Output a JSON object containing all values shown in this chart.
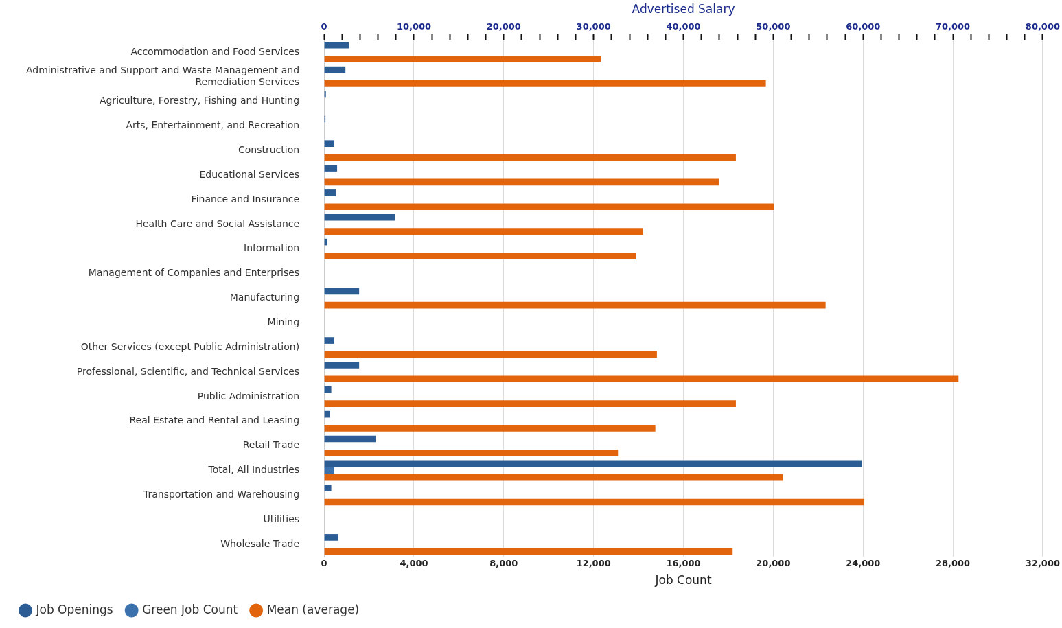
{
  "chart_data": {
    "type": "bar",
    "orientation": "horizontal",
    "xlabel": "Job Count",
    "x2label": "Advertised Salary",
    "categories": [
      "Accommodation and Food Services",
      "Administrative and Support and Waste Management and Remediation Services",
      "Agriculture, Forestry, Fishing and Hunting",
      "Arts, Entertainment, and Recreation",
      "Construction",
      "Educational Services",
      "Finance and Insurance",
      "Health Care and Social Assistance",
      "Information",
      "Management of Companies and Enterprises",
      "Manufacturing",
      "Mining",
      "Other Services (except Public Administration)",
      "Professional, Scientific, and Technical Services",
      "Public Administration",
      "Real Estate and Rental and Leasing",
      "Retail Trade",
      "Total, All Industries",
      "Transportation and Warehousing",
      "Utilities",
      "Wholesale Trade"
    ],
    "series": [
      {
        "name": "Job Openings",
        "color": "#2b5c94",
        "values": [
          1100,
          950,
          80,
          60,
          450,
          580,
          520,
          3170,
          140,
          null,
          1560,
          null,
          450,
          1560,
          320,
          270,
          2290,
          23940,
          320,
          null,
          630
        ]
      },
      {
        "name": "Green Job Count",
        "color": "#3b72ae",
        "values": [
          null,
          null,
          null,
          null,
          null,
          null,
          null,
          null,
          null,
          null,
          null,
          null,
          null,
          null,
          null,
          null,
          null,
          450,
          null,
          null,
          null
        ]
      },
      {
        "name": "Mean (average)",
        "color": "#e2650e",
        "axis": "x2",
        "values": [
          30860,
          49180,
          null,
          null,
          45840,
          43990,
          50120,
          35510,
          34710,
          null,
          55830,
          null,
          37050,
          70630,
          45840,
          36880,
          32720,
          51060,
          60140,
          null,
          45480
        ]
      }
    ],
    "xlim": [
      0,
      32000
    ],
    "xticks": [
      0,
      {
        "value": 4000,
        "label": "4,000"
      },
      {
        "value": 8000,
        "label": "8,000"
      },
      {
        "value": 12000,
        "label": "12,000"
      },
      {
        "value": 16000,
        "label": "16,000"
      },
      {
        "value": 20000,
        "label": "20,000"
      },
      {
        "value": 24000,
        "label": "24,000"
      },
      {
        "value": 28000,
        "label": "28,000"
      },
      {
        "value": 32000,
        "label": "32,000"
      }
    ],
    "x2lim": [
      0,
      80000
    ],
    "x2ticks": [
      0,
      {
        "value": 2000,
        "label": null
      },
      {
        "value": 4000,
        "label": null
      },
      {
        "value": 6000,
        "label": null
      },
      {
        "value": 8000,
        "label": null
      },
      {
        "value": 10000,
        "label": "10,000"
      },
      {
        "value": 12000,
        "label": null
      },
      {
        "value": 14000,
        "label": null
      },
      {
        "value": 16000,
        "label": null
      },
      {
        "value": 18000,
        "label": null
      },
      {
        "value": 20000,
        "label": "20,000"
      },
      {
        "value": 22000,
        "label": null
      },
      {
        "value": 24000,
        "label": null
      },
      {
        "value": 26000,
        "label": null
      },
      {
        "value": 28000,
        "label": null
      },
      {
        "value": 30000,
        "label": "30,000"
      },
      {
        "value": 32000,
        "label": null
      },
      {
        "value": 34000,
        "label": null
      },
      {
        "value": 36000,
        "label": null
      },
      {
        "value": 38000,
        "label": null
      },
      {
        "value": 40000,
        "label": "40,000"
      },
      {
        "value": 42000,
        "label": null
      },
      {
        "value": 44000,
        "label": null
      },
      {
        "value": 46000,
        "label": null
      },
      {
        "value": 48000,
        "label": null
      },
      {
        "value": 50000,
        "label": "50,000"
      },
      {
        "value": 52000,
        "label": null
      },
      {
        "value": 54000,
        "label": null
      },
      {
        "value": 56000,
        "label": null
      },
      {
        "value": 58000,
        "label": null
      },
      {
        "value": 60000,
        "label": "60,000"
      },
      {
        "value": 62000,
        "label": null
      },
      {
        "value": 64000,
        "label": null
      },
      {
        "value": 66000,
        "label": null
      },
      {
        "value": 68000,
        "label": null
      },
      {
        "value": 70000,
        "label": "70,000"
      },
      {
        "value": 72000,
        "label": null
      },
      {
        "value": 74000,
        "label": null
      },
      {
        "value": 76000,
        "label": null
      },
      {
        "value": 78000,
        "label": null
      },
      {
        "value": 80000,
        "label": "80,000"
      }
    ],
    "grid": "x",
    "legend": "bottom"
  }
}
